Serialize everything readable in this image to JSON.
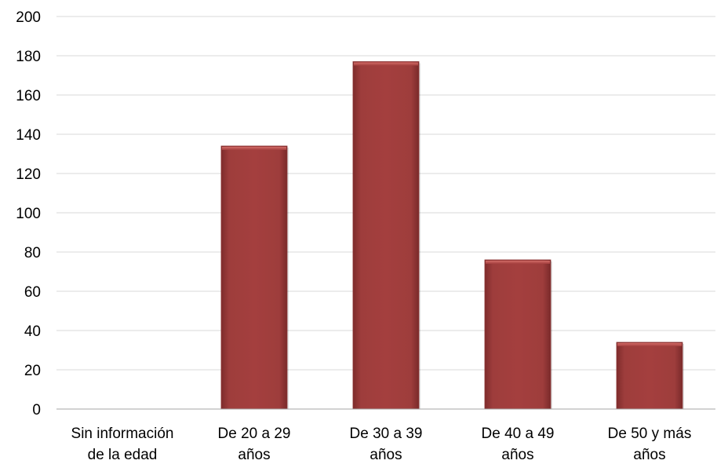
{
  "chart_data": {
    "type": "bar",
    "title": "",
    "xlabel": "",
    "ylabel": "",
    "categories": [
      [
        "Sin información",
        "de la edad"
      ],
      [
        "De 20 a 29",
        "años"
      ],
      [
        "De 30 a 39",
        "años"
      ],
      [
        "De 40 a 49",
        "años"
      ],
      [
        "De 50 y más",
        "años"
      ]
    ],
    "values": [
      0,
      134,
      177,
      76,
      34
    ],
    "ylim": [
      0,
      200
    ],
    "yticks": [
      "0",
      "20",
      "40",
      "60",
      "80",
      "100",
      "120",
      "140",
      "160",
      "180",
      "200"
    ],
    "grid": true,
    "legend": "none",
    "colors": {
      "bar": "#9b3b3b",
      "bar_light": "#b54a48",
      "bar_dark": "#7a2a2a"
    }
  }
}
